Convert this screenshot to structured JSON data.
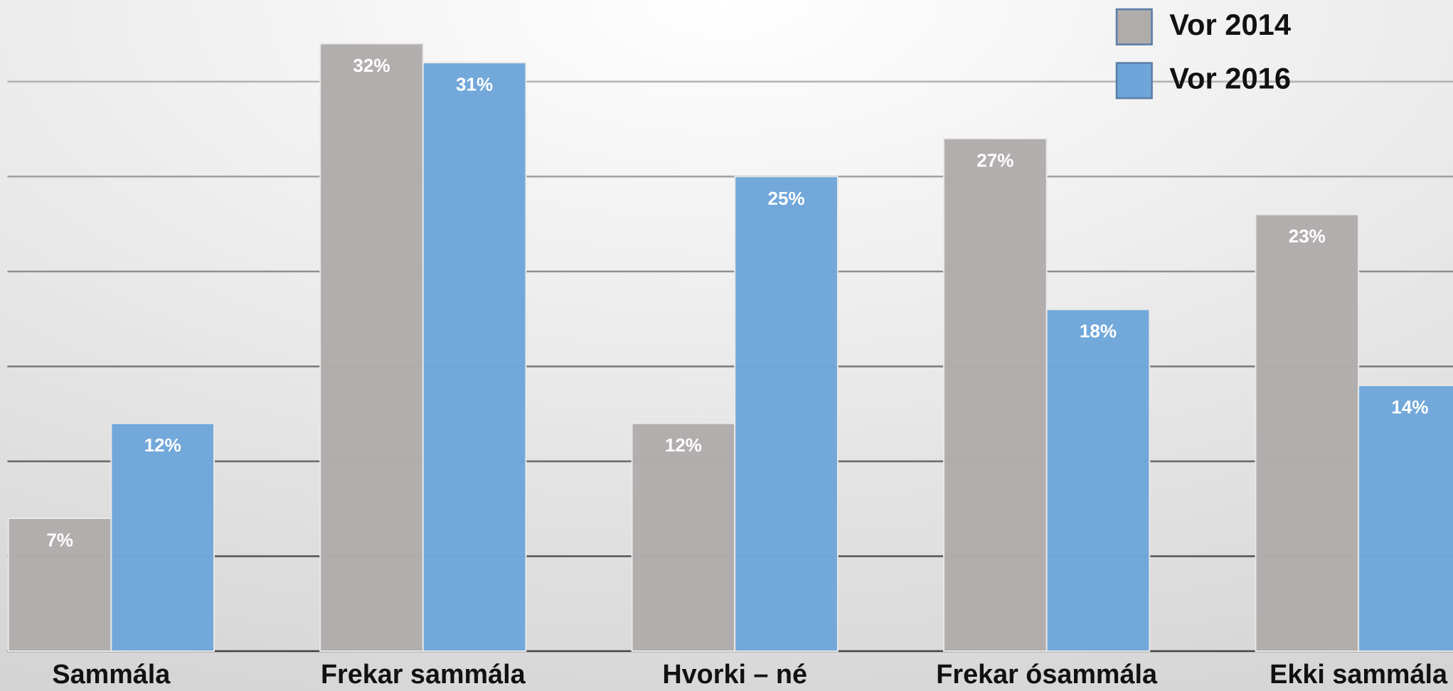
{
  "chart_data": {
    "type": "bar",
    "categories": [
      "Sammála",
      "Frekar sammála",
      "Hvorki – né",
      "Frekar ósammála",
      "Ekki sammála"
    ],
    "series": [
      {
        "name": "Vor 2014",
        "color": "#b0acab",
        "values": [
          7,
          32,
          12,
          27,
          23
        ],
        "value_labels": [
          "7%",
          "32%",
          "12%",
          "27%",
          "23%"
        ]
      },
      {
        "name": "Vor 2016",
        "color": "#6fa6d9",
        "values": [
          12,
          31,
          25,
          18,
          14
        ],
        "value_labels": [
          "12%",
          "31%",
          "25%",
          "18%",
          "14%"
        ]
      }
    ],
    "ylim": [
      0,
      34.3
    ],
    "yticks": [
      0,
      5,
      10,
      15,
      20,
      25,
      30
    ],
    "grid": true,
    "legend": "top-right"
  }
}
